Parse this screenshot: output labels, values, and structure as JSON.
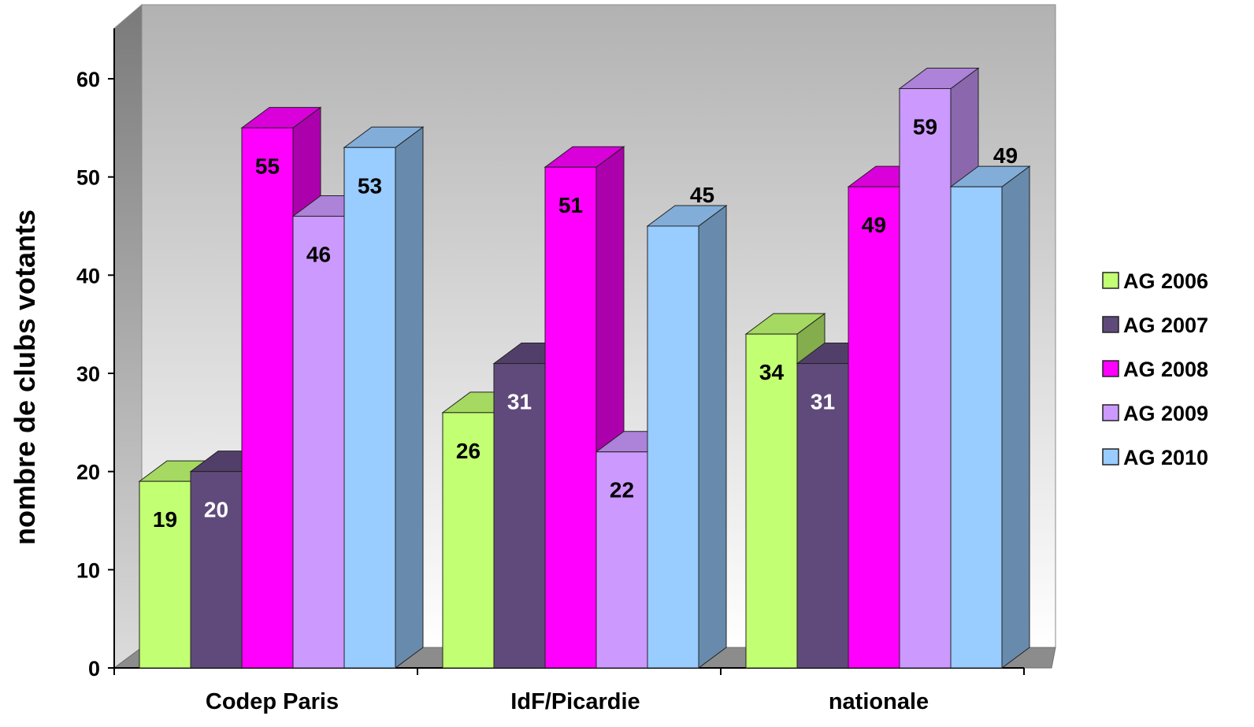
{
  "chart_data": {
    "type": "bar",
    "title": "",
    "xlabel": "",
    "ylabel": "nombre de clubs votants",
    "ylim": [
      0,
      60
    ],
    "yticks": [
      "0",
      "10",
      "20",
      "30",
      "40",
      "50",
      "60"
    ],
    "categories": [
      "Codep Paris",
      "IdF/Picardie",
      "nationale"
    ],
    "series": [
      {
        "name": "AG 2006",
        "values": [
          19,
          26,
          34
        ],
        "color": "#c2ff73",
        "labels": [
          "19",
          "26",
          "34"
        ]
      },
      {
        "name": "AG 2007",
        "values": [
          20,
          31,
          31
        ],
        "color": "#604a7b",
        "labels": [
          "20",
          "31",
          "31"
        ]
      },
      {
        "name": "AG 2008",
        "values": [
          55,
          51,
          49
        ],
        "color": "#ff00ff",
        "labels": [
          "55",
          "51",
          "49"
        ]
      },
      {
        "name": "AG 2009",
        "values": [
          46,
          22,
          59
        ],
        "color": "#cc99ff",
        "labels": [
          "46",
          "22",
          "59"
        ]
      },
      {
        "name": "AG 2010",
        "values": [
          53,
          45,
          49
        ],
        "color": "#99ccff",
        "labels": [
          "53",
          "45",
          "49"
        ]
      }
    ],
    "legend": "right",
    "grid": false,
    "style": "3d-clustered-column",
    "background": "gradient-gray"
  }
}
